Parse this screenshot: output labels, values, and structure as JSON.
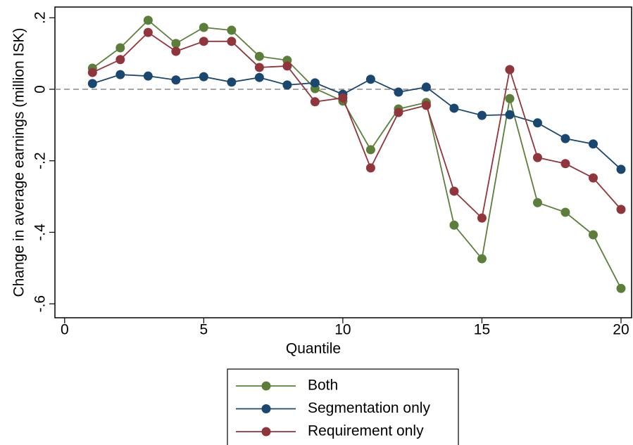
{
  "chart_data": {
    "type": "line",
    "x_label": "Quantile",
    "y_label": "Change in average earnings (million ISK)",
    "x": [
      1,
      2,
      3,
      4,
      5,
      6,
      7,
      8,
      9,
      10,
      11,
      12,
      13,
      14,
      15,
      16,
      17,
      18,
      19,
      20
    ],
    "series": [
      {
        "name": "Both",
        "color": "#5b7f3a",
        "values": [
          0.059,
          0.116,
          0.193,
          0.128,
          0.173,
          0.165,
          0.092,
          0.081,
          0.002,
          -0.033,
          -0.169,
          -0.055,
          -0.037,
          -0.38,
          -0.474,
          -0.026,
          -0.317,
          -0.344,
          -0.407,
          -0.557
        ]
      },
      {
        "name": "Segmentation only",
        "color": "#1a476f",
        "values": [
          0.016,
          0.041,
          0.037,
          0.026,
          0.035,
          0.02,
          0.033,
          0.012,
          0.018,
          -0.014,
          0.028,
          -0.008,
          0.006,
          -0.053,
          -0.073,
          -0.071,
          -0.094,
          -0.138,
          -0.153,
          -0.224
        ]
      },
      {
        "name": "Requirement only",
        "color": "#90353b",
        "values": [
          0.047,
          0.083,
          0.159,
          0.106,
          0.134,
          0.134,
          0.061,
          0.065,
          -0.035,
          -0.024,
          -0.22,
          -0.065,
          -0.045,
          -0.285,
          -0.36,
          0.055,
          -0.191,
          -0.208,
          -0.248,
          -0.336
        ]
      }
    ],
    "xlim": [
      -0.35,
      20.38
    ],
    "xticks": [
      0,
      5,
      10,
      15,
      20
    ],
    "ylim": [
      -0.639,
      0.23
    ],
    "yticks": [
      {
        "value": 0.2,
        "label": ".2"
      },
      0,
      {
        "value": -0.2,
        "label": "-.2"
      },
      {
        "value": -0.4,
        "label": "-.4"
      },
      {
        "value": -0.6,
        "label": "-.6"
      }
    ],
    "zero_line": true
  }
}
